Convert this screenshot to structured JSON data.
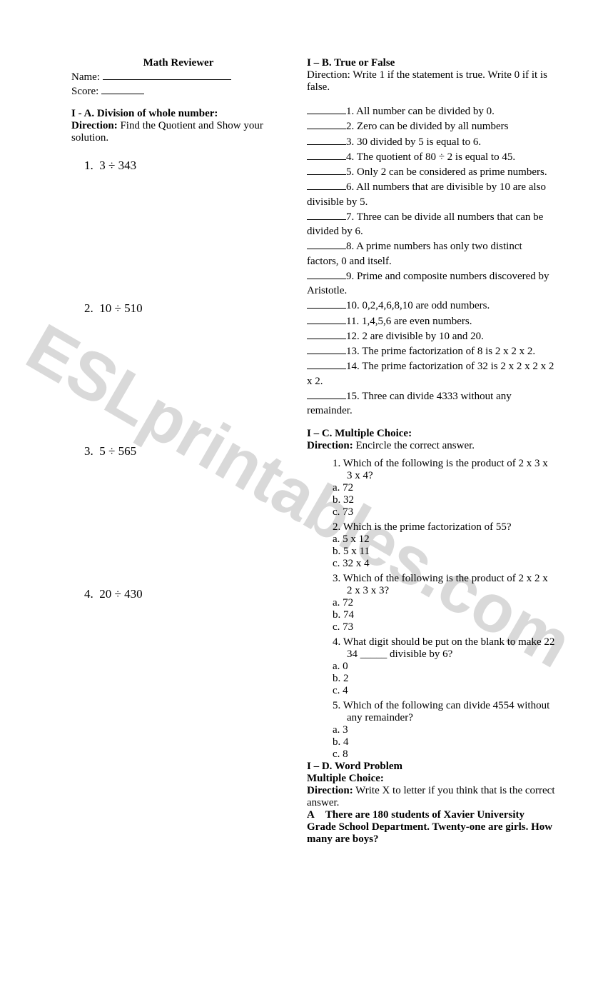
{
  "watermark_text": "ESLprintables.com",
  "header": {
    "title": "Math Reviewer",
    "name_label": "Name:",
    "score_label": "Score:"
  },
  "sectionA": {
    "heading": "I - A. Division of whole number:",
    "direction_label": "Direction:",
    "direction_text": " Find the Quotient and Show your solution.",
    "items": [
      {
        "n": "1.",
        "expr": "3 ÷ 343"
      },
      {
        "n": "2.",
        "expr": "10 ÷ 510"
      },
      {
        "n": "3.",
        "expr": "5 ÷ 565"
      },
      {
        "n": "4.",
        "expr": "20 ÷ 430"
      }
    ]
  },
  "sectionB": {
    "heading": "I – B. True or False",
    "direction": "Direction: Write 1 if the statement is true. Write 0 if it is false.",
    "items": [
      "1. All number can be divided by 0.",
      "2. Zero can be divided by all numbers",
      "3. 30 divided by 5 is equal to 6.",
      "4. The quotient of 80 ÷ 2 is equal to 45.",
      "5. Only 2 can be considered as prime numbers.",
      "6. All numbers that are divisible by 10 are also divisible by 5.",
      "7. Three can be divide all numbers that can be divided by 6.",
      "8. A prime numbers has only two distinct factors, 0 and itself.",
      "9. Prime and composite numbers discovered by Aristotle.",
      "10. 0,2,4,6,8,10 are odd numbers.",
      "11. 1,4,5,6 are even numbers.",
      "12. 2 are divisible by 10 and 20.",
      "13. The prime factorization of 8 is 2 x 2 x 2.",
      "14. The prime factorization of 32 is 2 x 2 x 2 x 2 x 2.",
      "15. Three can divide 4333 without any remainder."
    ]
  },
  "sectionC": {
    "heading": "I – C. Multiple Choice:",
    "direction_label": "Direction:",
    "direction_text": " Encircle the correct answer.",
    "questions": [
      {
        "n": "1.",
        "q": "Which of the following is the product of 2 x 3 x 3 x 4?",
        "opts": [
          {
            "l": "a.",
            "t": "72"
          },
          {
            "l": "b.",
            "t": "32"
          },
          {
            "l": "c.",
            "t": "73"
          }
        ]
      },
      {
        "n": "2.",
        "q": "Which is the prime factorization of 55?",
        "opts": [
          {
            "l": "a.",
            "t": "5 x 12"
          },
          {
            "l": "b.",
            "t": "5 x 11"
          },
          {
            "l": "c.",
            "t": "32 x 4"
          }
        ]
      },
      {
        "n": "3.",
        "q": "Which of the following is the product of 2 x 2 x 2 x 3 x 3?",
        "opts": [
          {
            "l": "a.",
            "t": "72"
          },
          {
            "l": "b.",
            "t": "74"
          },
          {
            "l": "c.",
            "t": "73"
          }
        ]
      },
      {
        "n": "4.",
        "q": "What digit should be put on the blank to make 22 34 _____ divisible by 6?",
        "opts": [
          {
            "l": "a.",
            "t": "0"
          },
          {
            "l": "b.",
            "t": "2"
          },
          {
            "l": "c.",
            "t": "4"
          }
        ]
      },
      {
        "n": "5.",
        "q": "Which of the following can divide 4554 without any remainder?",
        "opts": [
          {
            "l": "a.",
            "t": "3"
          },
          {
            "l": "b.",
            "t": "4"
          },
          {
            "l": "c.",
            "t": "8"
          }
        ]
      }
    ]
  },
  "sectionD": {
    "heading": "I – D. Word Problem",
    "subheading": "Multiple Choice:",
    "direction_label": "Direction:",
    "direction_text": "  Write X to letter if you think that is the correct answer.",
    "problem_label": "A",
    "problem_text": "There are 180 students of Xavier University Grade School Department.  Twenty-one are girls. How many are boys?"
  }
}
